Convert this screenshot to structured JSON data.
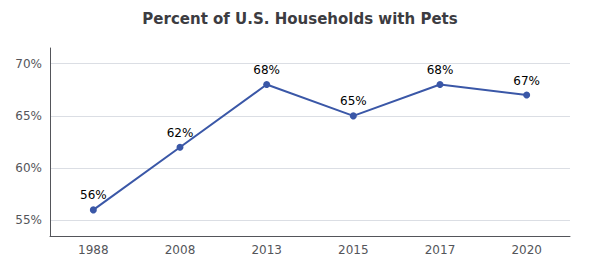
{
  "chart_data": {
    "type": "line",
    "title": "Percent of U.S. Households with Pets",
    "categories": [
      "1988",
      "2008",
      "2013",
      "2015",
      "2017",
      "2020"
    ],
    "values": [
      56,
      62,
      68,
      65,
      68,
      67
    ],
    "value_labels": [
      "56%",
      "62%",
      "68%",
      "65%",
      "68%",
      "67%"
    ],
    "data_labels": true,
    "color": "#3a57a7",
    "marker": "circle",
    "ylim": [
      53.5,
      71.5
    ],
    "yticks": [
      {
        "value": 55,
        "label": "55%"
      },
      {
        "value": 60,
        "label": "60%"
      },
      {
        "value": 65,
        "label": "65%"
      },
      {
        "value": 70,
        "label": "70%"
      }
    ],
    "grid": true
  }
}
